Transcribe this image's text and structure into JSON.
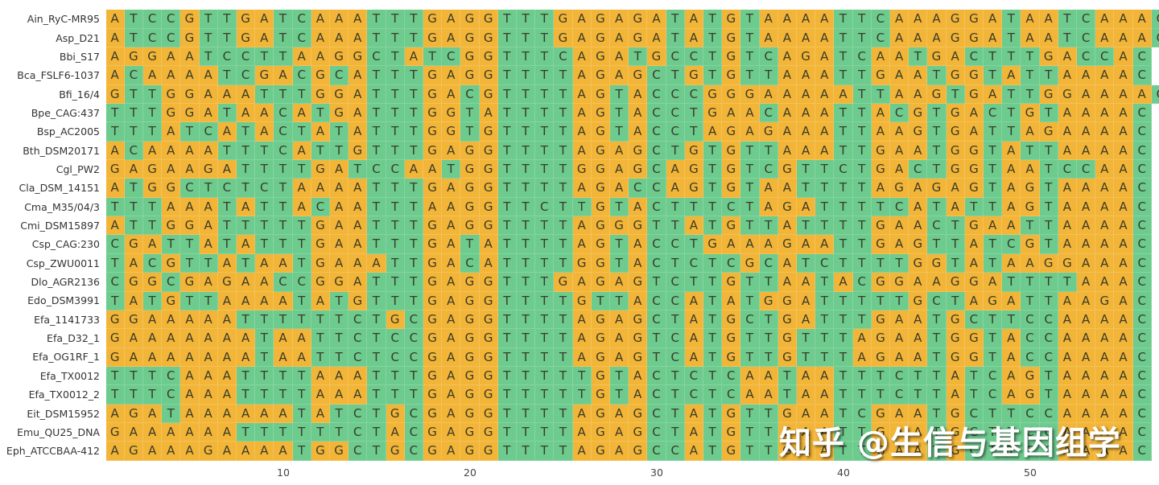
{
  "chart_data": {
    "type": "heatmap",
    "title": "",
    "xlabel": "",
    "ylabel": "",
    "x_range": [
      1,
      56
    ],
    "x_ticks": [
      "10",
      "20",
      "30",
      "40",
      "50"
    ],
    "x_tick_values": [
      10,
      20,
      30,
      40,
      50
    ],
    "color_scheme": {
      "A": "#F2B537",
      "G": "#F2B537",
      "C": "#6DCB8E",
      "T": "#6DCB8E"
    },
    "rows": [
      {
        "name": "Ain_RyC-MR95",
        "seq": "ATCCGTTGATCAAATTTGAGGTTTGAGAGATATGTAAAATTCAAAGGATAATCAAAC"
      },
      {
        "name": "Asp_D21",
        "seq": "ATCCGTTGATCAAATTTGAGGTTTGAGAGATATGTAAAATTCAAAGGATAATCAAAC"
      },
      {
        "name": "Bbi_S17",
        "seq": "AGGAATCCTTAAGGCTATCGGTTTCAGATGCCTGTCAGATCAATGACTTTGACCAC"
      },
      {
        "name": "Bca_FSLF6-1037",
        "seq": "ACAAAATCGACGCATTTGAGGTTTTAGAGCTGTGTTAAATTGAATGGTATTAAAAC"
      },
      {
        "name": "Bfi_16/4",
        "seq": "GTTGGAAATTTGGATTTGACGTTTTAGTACCCGGGAAAAATTAAGTGATTGGAAAAC"
      },
      {
        "name": "Bpe_CAG:437",
        "seq": "TTTGGATAACATGATTTGGTATTTTAGTACCTGAACAAATTACGTGACTGTAAAAC"
      },
      {
        "name": "Bsp_AC2005",
        "seq": "TTTATCATACTATATTTGGTGTTTTAGTACCTAGAGAAATTAAGTGATTAGAAAAC"
      },
      {
        "name": "Bth_DSM20171",
        "seq": "ACAAAATTTCATTGTTTGAGGTTTTAGAGCTGTGTTAAATTGAATGGTATTAAAAC"
      },
      {
        "name": "Cgl_PW2",
        "seq": "GAGAAGATTTTGATCCAATGGTTTTGGAGCAGTGTCGTTCTGACTGGTAATCCAAC"
      },
      {
        "name": "Cla_DSM_14151",
        "seq": "ATGGCTCTCTAAAATTTGAGGTTTTAGACCAGTGTAATTTTAGAGAGTAGTAAAAC"
      },
      {
        "name": "Cma_M35/04/3",
        "seq": "TTTAAATATTACAATTTAAGGTTCTTGTACTTTCTAGATTTTCATATTAGTAAAAC"
      },
      {
        "name": "Cmi_DSM15897",
        "seq": "ATTGGATTTTTGAATTTGAGGTTTTAGGGTTATGTTATTTTGAACTGAATTAAAAC"
      },
      {
        "name": "Csp_CAG:230",
        "seq": "CGATTATATTTGAATTTGATATTTTAGTACCTGAAAGAATTGAGTTATCGTAAAAC"
      },
      {
        "name": "Csp_ZWU0011",
        "seq": "TACGTTATAATGAAATTGACATTTTGGTACTCTCGCATCTTTTGGTATAAGGAAAC"
      },
      {
        "name": "Dlo_AGR2136",
        "seq": "CGGCGAGAACCGGATTTGAGGTTTGAGAGTCTTGTTAATACGGAAGGATTTTAAAC"
      },
      {
        "name": "Edo_DSM3991",
        "seq": "TATGTTAAAATATGTTTGAGGTTTTGTTACCATATGGATTTTTGCTAGATTAAGAC"
      },
      {
        "name": "Efa_1141733",
        "seq": "GGAAAAATTTTTTCTGCGAGGTTTTAGAGCTATGCTGATTTGAATGCTTCCAAAAC"
      },
      {
        "name": "Efa_D32_1",
        "seq": "GAAAAAAATAATTCTCCGAGGTTTTAGAGTCATGTTGTTTAGAATGGTACCAAAAC"
      },
      {
        "name": "Efa_OG1RF_1",
        "seq": "GAAAAAAATAATTCTCCGAGGTTTTAGAGTCATGTTGTTTAGAATGGTACCAAAAC"
      },
      {
        "name": "Efa_TX0012",
        "seq": "TTTCAAATTTTAAATTTGAGGTTTTTGTACTCTCAATAATTTCTTATCAGTAAAAC"
      },
      {
        "name": "Efa_TX0012_2",
        "seq": "TTTCAAATTTTAAATTTGAGGTTTTTGTACTCTCAATAATTTCTTATCAGTAAAAC"
      },
      {
        "name": "Eit_DSM15952",
        "seq": "AGATAAAAAATATCTGCGAGGTTTTAGAGCTATGTTGAATCGAATGCTTCCAAAAC"
      },
      {
        "name": "Emu_QU25_DNA",
        "seq": "GAAAAAATTTTTTCTACGAGGTTTTAGAGCTATGTTGAATTGAATGCTTCCAAAAC"
      },
      {
        "name": "Eph_ATCCBAA-412",
        "seq": "AGAAAGAAAATGGCTGCGAGGTTTTAGAGCCATGTTGAATTGAATGCTTCCAAAAC"
      }
    ]
  },
  "watermark": "知乎 @生信与基因组学"
}
